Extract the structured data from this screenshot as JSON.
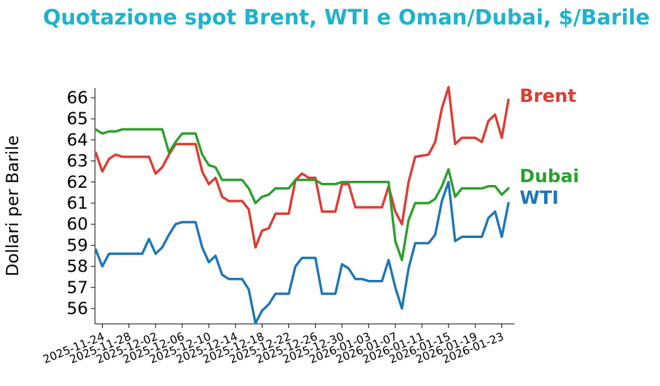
{
  "chart_data": {
    "type": "line",
    "title": "Quotazione spot Brent, WTI e Oman/Dubai, $/Barile",
    "ylabel": "Dollari per Barile",
    "xlabel": "",
    "ylim": [
      55.3,
      66.5
    ],
    "xlim": [
      "2025-11-23",
      "2026-01-24"
    ],
    "yticks": [
      56,
      57,
      58,
      59,
      60,
      61,
      62,
      63,
      64,
      65,
      66
    ],
    "xticks": [
      "2025-11-24",
      "2025-11-28",
      "2025-12-02",
      "2025-12-06",
      "2025-12-10",
      "2025-12-14",
      "2025-12-18",
      "2025-12-22",
      "2025-12-26",
      "2025-12-30",
      "2026-01-03",
      "2026-01-07",
      "2026-01-11",
      "2026-01-15",
      "2026-01-19",
      "2026-01-23"
    ],
    "grid": false,
    "legend": "labels at line ends (right)",
    "title_color": "#1cb3cf",
    "series": [
      {
        "name": "Brent",
        "color": "#dd3c34",
        "points": [
          [
            "2025-11-23",
            63.4
          ],
          [
            "2025-11-24",
            62.5
          ],
          [
            "2025-11-25",
            63.1
          ],
          [
            "2025-11-26",
            63.3
          ],
          [
            "2025-11-27",
            63.2
          ],
          [
            "2025-11-28",
            63.2
          ],
          [
            "2025-12-01",
            63.2
          ],
          [
            "2025-12-02",
            62.4
          ],
          [
            "2025-12-03",
            62.7
          ],
          [
            "2025-12-04",
            63.3
          ],
          [
            "2025-12-05",
            63.8
          ],
          [
            "2025-12-08",
            63.8
          ],
          [
            "2025-12-09",
            62.5
          ],
          [
            "2025-12-10",
            61.9
          ],
          [
            "2025-12-11",
            62.2
          ],
          [
            "2025-12-12",
            61.3
          ],
          [
            "2025-12-13",
            61.1
          ],
          [
            "2025-12-15",
            61.1
          ],
          [
            "2025-12-16",
            60.7
          ],
          [
            "2025-12-17",
            58.9
          ],
          [
            "2025-12-18",
            59.7
          ],
          [
            "2025-12-19",
            59.8
          ],
          [
            "2025-12-20",
            60.5
          ],
          [
            "2025-12-22",
            60.5
          ],
          [
            "2025-12-23",
            62.1
          ],
          [
            "2025-12-24",
            62.4
          ],
          [
            "2025-12-25",
            62.2
          ],
          [
            "2025-12-26",
            62.2
          ],
          [
            "2025-12-27",
            60.6
          ],
          [
            "2025-12-29",
            60.6
          ],
          [
            "2025-12-30",
            61.9
          ],
          [
            "2025-12-31",
            61.9
          ],
          [
            "2026-01-01",
            60.8
          ],
          [
            "2026-01-05",
            60.8
          ],
          [
            "2026-01-06",
            61.8
          ],
          [
            "2026-01-07",
            60.6
          ],
          [
            "2026-01-08",
            60.0
          ],
          [
            "2026-01-09",
            62.0
          ],
          [
            "2026-01-10",
            63.2
          ],
          [
            "2026-01-12",
            63.3
          ],
          [
            "2026-01-13",
            63.9
          ],
          [
            "2026-01-14",
            65.5
          ],
          [
            "2026-01-15",
            66.5
          ],
          [
            "2026-01-16",
            63.8
          ],
          [
            "2026-01-17",
            64.1
          ],
          [
            "2026-01-19",
            64.1
          ],
          [
            "2026-01-20",
            63.9
          ],
          [
            "2026-01-21",
            64.9
          ],
          [
            "2026-01-22",
            65.2
          ],
          [
            "2026-01-23",
            64.1
          ],
          [
            "2026-01-24",
            65.9
          ]
        ]
      },
      {
        "name": "Dubai",
        "color": "#2ca02c",
        "points": [
          [
            "2025-11-23",
            64.5
          ],
          [
            "2025-11-24",
            64.3
          ],
          [
            "2025-11-25",
            64.4
          ],
          [
            "2025-11-26",
            64.4
          ],
          [
            "2025-11-27",
            64.5
          ],
          [
            "2025-11-28",
            64.5
          ],
          [
            "2025-12-03",
            64.5
          ],
          [
            "2025-12-04",
            63.4
          ],
          [
            "2025-12-05",
            63.9
          ],
          [
            "2025-12-06",
            64.3
          ],
          [
            "2025-12-08",
            64.3
          ],
          [
            "2025-12-09",
            63.3
          ],
          [
            "2025-12-10",
            62.8
          ],
          [
            "2025-12-11",
            62.7
          ],
          [
            "2025-12-12",
            62.1
          ],
          [
            "2025-12-15",
            62.1
          ],
          [
            "2025-12-16",
            61.7
          ],
          [
            "2025-12-17",
            61.0
          ],
          [
            "2025-12-18",
            61.3
          ],
          [
            "2025-12-19",
            61.4
          ],
          [
            "2025-12-20",
            61.7
          ],
          [
            "2025-12-22",
            61.7
          ],
          [
            "2025-12-23",
            62.1
          ],
          [
            "2025-12-26",
            62.1
          ],
          [
            "2025-12-27",
            61.9
          ],
          [
            "2025-12-29",
            61.9
          ],
          [
            "2025-12-30",
            62.0
          ],
          [
            "2026-01-05",
            62.0
          ],
          [
            "2026-01-06",
            62.0
          ],
          [
            "2026-01-07",
            59.2
          ],
          [
            "2026-01-08",
            58.3
          ],
          [
            "2026-01-09",
            60.2
          ],
          [
            "2026-01-10",
            61.0
          ],
          [
            "2026-01-12",
            61.0
          ],
          [
            "2026-01-13",
            61.2
          ],
          [
            "2026-01-14",
            61.8
          ],
          [
            "2026-01-15",
            62.6
          ],
          [
            "2026-01-16",
            61.3
          ],
          [
            "2026-01-17",
            61.7
          ],
          [
            "2026-01-20",
            61.7
          ],
          [
            "2026-01-21",
            61.8
          ],
          [
            "2026-01-22",
            61.8
          ],
          [
            "2026-01-23",
            61.4
          ],
          [
            "2026-01-24",
            61.7
          ]
        ]
      },
      {
        "name": "WTI",
        "color": "#1f77b4",
        "points": [
          [
            "2025-11-23",
            58.8
          ],
          [
            "2025-11-24",
            58.0
          ],
          [
            "2025-11-25",
            58.6
          ],
          [
            "2025-11-26",
            58.6
          ],
          [
            "2025-11-28",
            58.6
          ],
          [
            "2025-11-29",
            58.6
          ],
          [
            "2025-11-30",
            58.6
          ],
          [
            "2025-12-01",
            59.3
          ],
          [
            "2025-12-02",
            58.6
          ],
          [
            "2025-12-03",
            58.9
          ],
          [
            "2025-12-04",
            59.5
          ],
          [
            "2025-12-05",
            60.0
          ],
          [
            "2025-12-06",
            60.1
          ],
          [
            "2025-12-08",
            60.1
          ],
          [
            "2025-12-09",
            58.9
          ],
          [
            "2025-12-10",
            58.2
          ],
          [
            "2025-12-11",
            58.5
          ],
          [
            "2025-12-12",
            57.6
          ],
          [
            "2025-12-13",
            57.4
          ],
          [
            "2025-12-15",
            57.4
          ],
          [
            "2025-12-16",
            56.9
          ],
          [
            "2025-12-17",
            55.3
          ],
          [
            "2025-12-18",
            55.9
          ],
          [
            "2025-12-19",
            56.2
          ],
          [
            "2025-12-20",
            56.7
          ],
          [
            "2025-12-22",
            56.7
          ],
          [
            "2025-12-23",
            58.0
          ],
          [
            "2025-12-24",
            58.4
          ],
          [
            "2025-12-25",
            58.4
          ],
          [
            "2025-12-26",
            58.4
          ],
          [
            "2025-12-27",
            56.7
          ],
          [
            "2025-12-29",
            56.7
          ],
          [
            "2025-12-30",
            58.1
          ],
          [
            "2025-12-31",
            57.9
          ],
          [
            "2026-01-01",
            57.4
          ],
          [
            "2026-01-02",
            57.4
          ],
          [
            "2026-01-03",
            57.3
          ],
          [
            "2026-01-05",
            57.3
          ],
          [
            "2026-01-06",
            58.3
          ],
          [
            "2026-01-07",
            57.0
          ],
          [
            "2026-01-08",
            56.0
          ],
          [
            "2026-01-09",
            57.9
          ],
          [
            "2026-01-10",
            59.1
          ],
          [
            "2026-01-12",
            59.1
          ],
          [
            "2026-01-13",
            59.5
          ],
          [
            "2026-01-14",
            61.1
          ],
          [
            "2026-01-15",
            62.0
          ],
          [
            "2026-01-16",
            59.2
          ],
          [
            "2026-01-17",
            59.4
          ],
          [
            "2026-01-20",
            59.4
          ],
          [
            "2026-01-21",
            60.3
          ],
          [
            "2026-01-22",
            60.6
          ],
          [
            "2026-01-23",
            59.4
          ],
          [
            "2026-01-24",
            61.0
          ]
        ]
      }
    ]
  }
}
